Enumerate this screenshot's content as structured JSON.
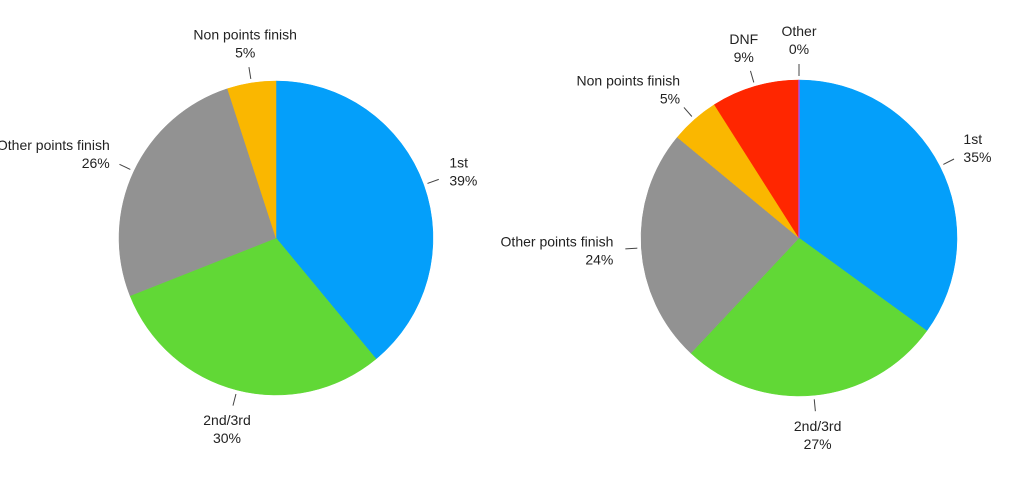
{
  "chart_data": [
    {
      "type": "pie",
      "categories": [
        "1st",
        "2nd/3rd",
        "Other points finish",
        "Non points finish"
      ],
      "values": [
        39,
        30,
        26,
        5
      ],
      "value_labels": [
        "39%",
        "30%",
        "26%",
        "5%"
      ],
      "colors": [
        "#049ffa",
        "#61d836",
        "#929292",
        "#fab700"
      ]
    },
    {
      "type": "pie",
      "categories": [
        "1st",
        "2nd/3rd",
        "Other points finish",
        "Non points finish",
        "DNF",
        "Other"
      ],
      "values": [
        35,
        27,
        24,
        5,
        9,
        0
      ],
      "value_labels": [
        "35%",
        "27%",
        "24%",
        "5%",
        "9%",
        "0%"
      ],
      "colors": [
        "#049ffa",
        "#61d836",
        "#929292",
        "#fab700",
        "#ff2600",
        "#b84fd6"
      ]
    }
  ]
}
